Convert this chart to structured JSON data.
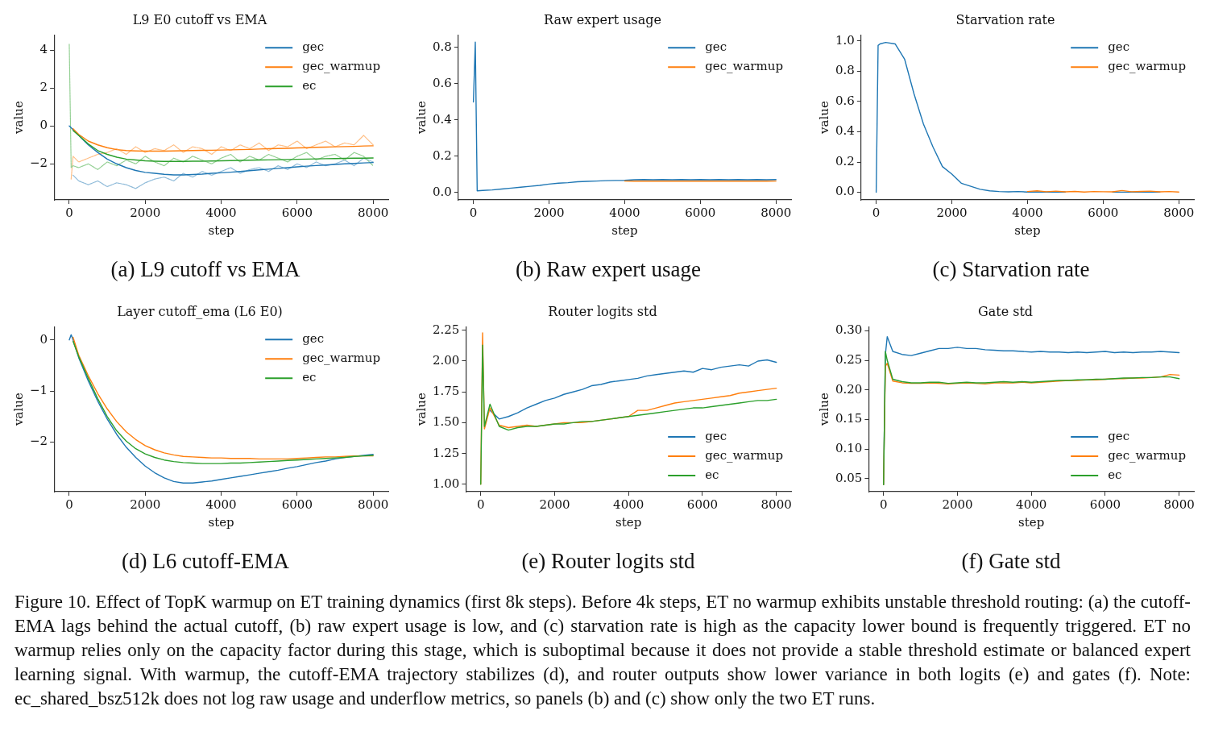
{
  "chart_data": [
    {
      "type": "line",
      "title": "L9 E0 cutoff vs EMA",
      "xlabel": "step",
      "ylabel": "value",
      "legend": "top right",
      "x": [
        0,
        50,
        100,
        250,
        500,
        750,
        1000,
        1250,
        1500,
        1750,
        2000,
        2250,
        2500,
        2750,
        3000,
        3250,
        3500,
        3750,
        4000,
        4250,
        4500,
        4750,
        5000,
        5250,
        5500,
        5750,
        6000,
        6250,
        6500,
        6750,
        7000,
        7250,
        7500,
        7750,
        8000
      ],
      "xlim": [
        -400,
        8400
      ],
      "xticks": [
        0,
        2000,
        4000,
        6000,
        8000
      ],
      "ylim": [
        -3.9,
        4.8
      ],
      "yticks": [
        {
          "value": -2,
          "label": "−2"
        },
        0,
        2,
        4
      ],
      "series": [
        {
          "color": "#8fbbd9",
          "line_style": "dashed",
          "values": [
            null,
            null,
            -2.6,
            -2.9,
            -3.1,
            -2.9,
            -3.2,
            -3.0,
            -3.1,
            -3.3,
            -3.0,
            -2.8,
            -2.7,
            -2.9,
            -2.5,
            -2.7,
            -2.4,
            -2.6,
            -2.4,
            -2.2,
            -2.5,
            -2.3,
            -2.2,
            -2.4,
            -2.1,
            -2.3,
            -2.0,
            -2.2,
            -1.9,
            -2.1,
            -2.0,
            -1.8,
            -2.1,
            -1.7,
            -1.9
          ]
        },
        {
          "color": "#ffbf86",
          "line_style": "dashed",
          "values": [
            null,
            -2.8,
            -1.6,
            -1.9,
            -1.7,
            -1.5,
            -1.4,
            -1.2,
            -1.5,
            -1.1,
            -1.4,
            -1.2,
            -1.3,
            -1.0,
            -1.4,
            -1.1,
            -1.2,
            -1.5,
            -1.1,
            -1.3,
            -1.0,
            -1.2,
            -0.9,
            -1.3,
            -1.0,
            -1.1,
            -0.8,
            -1.2,
            -1.0,
            -0.8,
            -1.1,
            -0.9,
            -1.0,
            -0.5,
            -1.0
          ]
        },
        {
          "color": "#94d094",
          "line_style": "dashed",
          "values": [
            4.3,
            -2.2,
            -2.1,
            -2.2,
            -2.0,
            -2.3,
            -1.9,
            -2.1,
            -1.8,
            -2.0,
            -1.6,
            -1.9,
            -2.1,
            -1.7,
            -1.9,
            -1.6,
            -1.8,
            -2.0,
            -1.7,
            -1.5,
            -1.9,
            -1.6,
            -1.8,
            -1.5,
            -1.7,
            -1.9,
            -1.6,
            -1.4,
            -1.8,
            -1.6,
            -1.5,
            -1.8,
            -1.4,
            -1.6,
            -2.1
          ]
        },
        {
          "name": "gec",
          "color": "#1f77b4",
          "values": [
            0.0,
            -0.1,
            -0.2,
            -0.5,
            -1.0,
            -1.4,
            -1.75,
            -2.0,
            -2.2,
            -2.35,
            -2.45,
            -2.5,
            -2.55,
            -2.58,
            -2.58,
            -2.56,
            -2.54,
            -2.5,
            -2.47,
            -2.44,
            -2.4,
            -2.36,
            -2.32,
            -2.28,
            -2.24,
            -2.2,
            -2.16,
            -2.12,
            -2.09,
            -2.06,
            -2.03,
            -2.0,
            -1.98,
            -1.95,
            -1.93
          ]
        },
        {
          "name": "gec_warmup",
          "color": "#ff7f0e",
          "values": [
            null,
            null,
            -0.15,
            -0.45,
            -0.8,
            -1.0,
            -1.15,
            -1.25,
            -1.3,
            -1.32,
            -1.33,
            -1.33,
            -1.33,
            -1.32,
            -1.31,
            -1.3,
            -1.29,
            -1.28,
            -1.27,
            -1.26,
            -1.25,
            -1.24,
            -1.22,
            -1.2,
            -1.19,
            -1.18,
            -1.16,
            -1.15,
            -1.13,
            -1.12,
            -1.1,
            -1.09,
            -1.08,
            -1.06,
            -1.05
          ]
        },
        {
          "name": "ec",
          "color": "#2ca02c",
          "values": [
            null,
            null,
            -0.25,
            -0.5,
            -0.95,
            -1.3,
            -1.5,
            -1.65,
            -1.75,
            -1.8,
            -1.84,
            -1.86,
            -1.87,
            -1.87,
            -1.87,
            -1.86,
            -1.86,
            -1.85,
            -1.84,
            -1.83,
            -1.82,
            -1.81,
            -1.8,
            -1.79,
            -1.78,
            -1.77,
            -1.76,
            -1.75,
            -1.74,
            -1.73,
            -1.72,
            -1.71,
            -1.7,
            -1.7,
            -1.69
          ]
        }
      ],
      "annotations": [
        "(a) L9 cutoff vs EMA"
      ]
    },
    {
      "type": "line",
      "title": "Raw expert usage",
      "xlabel": "step",
      "ylabel": "value",
      "legend": "top right",
      "x": [
        0,
        50,
        100,
        250,
        500,
        750,
        1000,
        1250,
        1500,
        1750,
        2000,
        2250,
        2500,
        2750,
        3000,
        3250,
        3500,
        3750,
        4000,
        4250,
        4500,
        4750,
        5000,
        5250,
        5500,
        5750,
        6000,
        6250,
        6500,
        6750,
        7000,
        7250,
        7500,
        7750,
        8000
      ],
      "xlim": [
        -400,
        8400
      ],
      "xticks": [
        0,
        2000,
        4000,
        6000,
        8000
      ],
      "ylim": [
        -0.04,
        0.87
      ],
      "yticks": [
        {
          "value": 0,
          "label": "0.0"
        },
        0.2,
        0.4,
        0.6,
        0.8
      ],
      "series": [
        {
          "name": "gec",
          "color": "#1f77b4",
          "values": [
            0.5,
            0.83,
            0.01,
            0.012,
            0.015,
            0.02,
            0.025,
            0.03,
            0.035,
            0.04,
            0.047,
            0.052,
            0.055,
            0.06,
            0.062,
            0.064,
            0.066,
            0.067,
            0.068,
            0.071,
            0.072,
            0.071,
            0.072,
            0.071,
            0.072,
            0.071,
            0.072,
            0.071,
            0.072,
            0.071,
            0.072,
            0.071,
            0.072,
            0.071,
            0.072
          ]
        },
        {
          "name": "gec_warmup",
          "color": "#ff7f0e",
          "values": [
            null,
            null,
            null,
            null,
            null,
            null,
            null,
            null,
            null,
            null,
            null,
            null,
            null,
            null,
            null,
            null,
            null,
            null,
            0.064,
            0.063,
            0.064,
            0.063,
            0.064,
            0.063,
            0.064,
            0.063,
            0.064,
            0.063,
            0.064,
            0.063,
            0.064,
            0.063,
            0.064,
            0.063,
            0.064
          ]
        }
      ],
      "annotations": [
        "(b) Raw expert usage"
      ]
    },
    {
      "type": "line",
      "title": "Starvation rate",
      "xlabel": "step",
      "ylabel": "value",
      "legend": "top right",
      "x": [
        0,
        50,
        100,
        250,
        500,
        750,
        1000,
        1250,
        1500,
        1750,
        2000,
        2250,
        2500,
        2750,
        3000,
        3250,
        3500,
        3750,
        4000,
        4250,
        4500,
        4750,
        5000,
        5250,
        5500,
        5750,
        6000,
        6250,
        6500,
        6750,
        7000,
        7250,
        7500,
        7750,
        8000
      ],
      "xlim": [
        -400,
        8400
      ],
      "xticks": [
        0,
        2000,
        4000,
        6000,
        8000
      ],
      "ylim": [
        -0.05,
        1.04
      ],
      "yticks": [
        {
          "value": 0,
          "label": "0.0"
        },
        0.2,
        0.4,
        0.6,
        0.8,
        {
          "value": 1,
          "label": "1.0"
        }
      ],
      "series": [
        {
          "name": "gec",
          "color": "#1f77b4",
          "values": [
            0.0,
            0.97,
            0.98,
            0.99,
            0.98,
            0.88,
            0.65,
            0.45,
            0.3,
            0.17,
            0.12,
            0.06,
            0.04,
            0.02,
            0.01,
            0.005,
            0.003,
            0.005,
            0.002,
            0.003,
            0.002,
            0.003,
            0.002,
            null,
            null,
            null,
            null,
            0.002,
            0.001,
            0.002,
            0.001,
            0.001,
            0.002,
            null,
            null
          ]
        },
        {
          "name": "gec_warmup",
          "color": "#ff7f0e",
          "values": [
            null,
            null,
            null,
            null,
            null,
            null,
            null,
            null,
            null,
            null,
            null,
            null,
            null,
            null,
            null,
            null,
            null,
            null,
            0.005,
            0.01,
            0.004,
            0.008,
            0.003,
            0.006,
            0.002,
            0.005,
            0.004,
            0.003,
            0.012,
            0.004,
            0.006,
            0.008,
            0.003,
            0.005,
            0.002
          ]
        }
      ],
      "annotations": [
        "(c) Starvation rate"
      ]
    },
    {
      "type": "line",
      "title": "Layer cutoff_ema (L6 E0)",
      "xlabel": "step",
      "ylabel": "value",
      "legend": "top right",
      "x": [
        0,
        50,
        100,
        250,
        500,
        750,
        1000,
        1250,
        1500,
        1750,
        2000,
        2250,
        2500,
        2750,
        3000,
        3250,
        3500,
        3750,
        4000,
        4250,
        4500,
        4750,
        5000,
        5250,
        5500,
        5750,
        6000,
        6250,
        6500,
        6750,
        7000,
        7250,
        7500,
        7750,
        8000
      ],
      "xlim": [
        -400,
        8400
      ],
      "xticks": [
        0,
        2000,
        4000,
        6000,
        8000
      ],
      "ylim": [
        -2.97,
        0.26
      ],
      "yticks": [
        {
          "value": -2,
          "label": "−2"
        },
        {
          "value": -1,
          "label": "−1"
        },
        0
      ],
      "series": [
        {
          "name": "gec",
          "color": "#1f77b4",
          "values": [
            0,
            0.1,
            0.0,
            -0.35,
            -0.8,
            -1.2,
            -1.55,
            -1.85,
            -2.1,
            -2.3,
            -2.47,
            -2.6,
            -2.7,
            -2.77,
            -2.8,
            -2.8,
            -2.78,
            -2.76,
            -2.73,
            -2.7,
            -2.67,
            -2.64,
            -2.61,
            -2.58,
            -2.55,
            -2.51,
            -2.48,
            -2.44,
            -2.4,
            -2.37,
            -2.33,
            -2.3,
            -2.28,
            -2.26,
            -2.24
          ]
        },
        {
          "name": "gec_warmup",
          "color": "#ff7f0e",
          "values": [
            null,
            null,
            0.05,
            -0.3,
            -0.7,
            -1.05,
            -1.35,
            -1.6,
            -1.8,
            -1.95,
            -2.07,
            -2.15,
            -2.21,
            -2.25,
            -2.28,
            -2.29,
            -2.3,
            -2.31,
            -2.31,
            -2.32,
            -2.32,
            -2.32,
            -2.33,
            -2.33,
            -2.33,
            -2.33,
            -2.32,
            -2.31,
            -2.3,
            -2.29,
            -2.29,
            -2.28,
            -2.27,
            -2.27,
            -2.27
          ]
        },
        {
          "name": "ec",
          "color": "#2ca02c",
          "values": [
            null,
            null,
            -0.03,
            -0.33,
            -0.75,
            -1.15,
            -1.5,
            -1.78,
            -1.98,
            -2.13,
            -2.23,
            -2.3,
            -2.35,
            -2.38,
            -2.4,
            -2.41,
            -2.42,
            -2.42,
            -2.42,
            -2.41,
            -2.41,
            -2.4,
            -2.39,
            -2.38,
            -2.37,
            -2.36,
            -2.35,
            -2.34,
            -2.33,
            -2.32,
            -2.31,
            -2.3,
            -2.28,
            -2.27,
            -2.26
          ]
        }
      ],
      "annotations": [
        "(d) L6 cutoff-EMA"
      ]
    },
    {
      "type": "line",
      "title": "Router logits std",
      "xlabel": "step",
      "ylabel": "value",
      "legend": "bottom right",
      "x": [
        0,
        50,
        100,
        250,
        500,
        750,
        1000,
        1250,
        1500,
        1750,
        2000,
        2250,
        2500,
        2750,
        3000,
        3250,
        3500,
        3750,
        4000,
        4250,
        4500,
        4750,
        5000,
        5250,
        5500,
        5750,
        6000,
        6250,
        6500,
        6750,
        7000,
        7250,
        7500,
        7750,
        8000
      ],
      "xlim": [
        -400,
        8400
      ],
      "xticks": [
        0,
        2000,
        4000,
        6000,
        8000
      ],
      "ylim": [
        0.94,
        2.28
      ],
      "yticks": [
        {
          "value": 1,
          "label": "1.00"
        },
        1.25,
        {
          "value": 1.5,
          "label": "1.50"
        },
        1.75,
        {
          "value": 2,
          "label": "2.00"
        },
        2.25
      ],
      "series": [
        {
          "name": "gec",
          "color": "#1f77b4",
          "values": [
            null,
            null,
            null,
            1.6,
            1.53,
            1.55,
            1.58,
            1.62,
            1.65,
            1.68,
            1.7,
            1.73,
            1.75,
            1.77,
            1.8,
            1.81,
            1.83,
            1.84,
            1.85,
            1.86,
            1.88,
            1.89,
            1.9,
            1.91,
            1.92,
            1.91,
            1.94,
            1.93,
            1.95,
            1.96,
            1.97,
            1.96,
            2.0,
            2.01,
            1.99
          ]
        },
        {
          "name": "gec_warmup",
          "color": "#ff7f0e",
          "values": [
            1.0,
            2.23,
            1.45,
            1.62,
            1.48,
            1.46,
            1.47,
            1.48,
            1.47,
            1.48,
            1.49,
            1.5,
            1.5,
            1.5,
            1.51,
            1.52,
            1.53,
            1.54,
            1.55,
            1.6,
            1.6,
            1.62,
            1.64,
            1.66,
            1.67,
            1.68,
            1.69,
            1.7,
            1.71,
            1.72,
            1.74,
            1.75,
            1.76,
            1.77,
            1.78
          ]
        },
        {
          "name": "ec",
          "color": "#2ca02c",
          "values": [
            1.0,
            2.13,
            1.47,
            1.65,
            1.47,
            1.44,
            1.46,
            1.47,
            1.47,
            1.48,
            1.49,
            1.49,
            1.5,
            1.51,
            1.51,
            1.52,
            1.53,
            1.54,
            1.55,
            1.56,
            1.57,
            1.58,
            1.59,
            1.6,
            1.61,
            1.62,
            1.62,
            1.63,
            1.64,
            1.65,
            1.66,
            1.67,
            1.68,
            1.68,
            1.69
          ]
        }
      ],
      "annotations": [
        "(e) Router logits std"
      ]
    },
    {
      "type": "line",
      "title": "Gate std",
      "xlabel": "step",
      "ylabel": "value",
      "legend": "bottom right",
      "x": [
        0,
        50,
        100,
        250,
        500,
        750,
        1000,
        1250,
        1500,
        1750,
        2000,
        2250,
        2500,
        2750,
        3000,
        3250,
        3500,
        3750,
        4000,
        4250,
        4500,
        4750,
        5000,
        5250,
        5500,
        5750,
        6000,
        6250,
        6500,
        6750,
        7000,
        7250,
        7500,
        7750,
        8000
      ],
      "xlim": [
        -400,
        8400
      ],
      "xticks": [
        0,
        2000,
        4000,
        6000,
        8000
      ],
      "ylim": [
        0.028,
        0.307
      ],
      "yticks": [
        0.05,
        {
          "value": 0.1,
          "label": "0.10"
        },
        0.15,
        {
          "value": 0.2,
          "label": "0.20"
        },
        0.25,
        {
          "value": 0.3,
          "label": "0.30"
        }
      ],
      "series": [
        {
          "name": "gec",
          "color": "#1f77b4",
          "values": [
            0.04,
            0.26,
            0.29,
            0.265,
            0.26,
            0.258,
            0.262,
            0.266,
            0.27,
            0.27,
            0.272,
            0.27,
            0.27,
            0.268,
            0.267,
            0.266,
            0.266,
            0.265,
            0.264,
            0.265,
            0.264,
            0.264,
            0.263,
            0.264,
            0.263,
            0.264,
            0.265,
            0.263,
            0.264,
            0.263,
            0.264,
            0.264,
            0.265,
            0.264,
            0.263
          ]
        },
        {
          "name": "gec_warmup",
          "color": "#ff7f0e",
          "values": [
            0.04,
            0.24,
            0.245,
            0.215,
            0.212,
            0.211,
            0.211,
            0.212,
            0.211,
            0.21,
            0.211,
            0.212,
            0.211,
            0.21,
            0.212,
            0.212,
            0.212,
            0.213,
            0.212,
            0.213,
            0.214,
            0.215,
            0.216,
            0.216,
            0.217,
            0.217,
            0.218,
            0.219,
            0.219,
            0.22,
            0.22,
            0.221,
            0.222,
            0.226,
            0.225
          ]
        },
        {
          "name": "ec",
          "color": "#2ca02c",
          "values": [
            0.04,
            0.265,
            0.25,
            0.218,
            0.214,
            0.212,
            0.212,
            0.213,
            0.213,
            0.211,
            0.212,
            0.213,
            0.212,
            0.212,
            0.213,
            0.214,
            0.213,
            0.214,
            0.213,
            0.214,
            0.215,
            0.216,
            0.216,
            0.217,
            0.217,
            0.218,
            0.218,
            0.219,
            0.22,
            0.22,
            0.221,
            0.221,
            0.222,
            0.222,
            0.219
          ]
        }
      ],
      "annotations": [
        "(f) Gate std",
        "Figure 10. Effect of TopK warmup on ET training dynamics (first 8k steps). Before 4k steps, ET no warmup exhibits unstable threshold routing: (a) the cutoff-EMA lags behind the actual cutoff, (b) raw expert usage is low, and (c) starvation rate is high as the capacity lower bound is frequently triggered. ET no warmup relies only on the capacity factor during this stage, which is suboptimal because it does not provide a stable threshold estimate or balanced expert learning signal. With warmup, the cutoff-EMA trajectory stabilizes (d), and router outputs show lower variance in both logits (e) and gates (f). Note: ec_shared_bsz512k does not log raw usage and underflow metrics, so panels (b) and (c) show only the two ET runs."
      ]
    }
  ]
}
